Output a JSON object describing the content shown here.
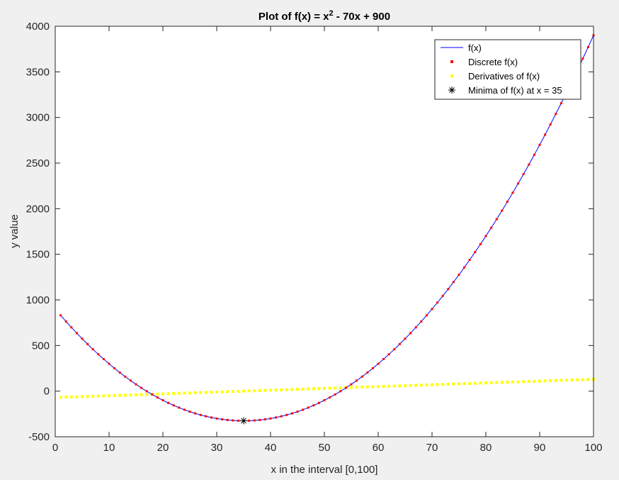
{
  "chart_data": {
    "type": "line",
    "title_main": "Plot of f(x) = x",
    "title_sup": "2",
    "title_rest": " - 70x + 900",
    "xlabel": "x in the interval [0,100]",
    "ylabel": "y value",
    "xlim": [
      0,
      100
    ],
    "ylim": [
      -500,
      4000
    ],
    "xticks": [
      0,
      10,
      20,
      30,
      40,
      50,
      60,
      70,
      80,
      90,
      100
    ],
    "yticks": [
      -500,
      0,
      500,
      1000,
      1500,
      2000,
      2500,
      3000,
      3500,
      4000
    ],
    "grid": false,
    "legend_position": "top-right",
    "function": {
      "a": 1,
      "b": -70,
      "c": 900
    },
    "x_range": [
      1,
      100
    ],
    "x_step": 1,
    "minimum": {
      "x": 35,
      "y": -325
    },
    "series": [
      {
        "name": "f(x)",
        "style": "line",
        "color": "#0000ff"
      },
      {
        "name": "Discrete f(x)",
        "style": "dots",
        "color": "#ff0000"
      },
      {
        "name": "Derivatives of f(x)",
        "style": "dots",
        "color": "#ffff00"
      },
      {
        "name": "Minima of f(x) at x = 35",
        "style": "asterisk",
        "color": "#000000"
      }
    ]
  }
}
